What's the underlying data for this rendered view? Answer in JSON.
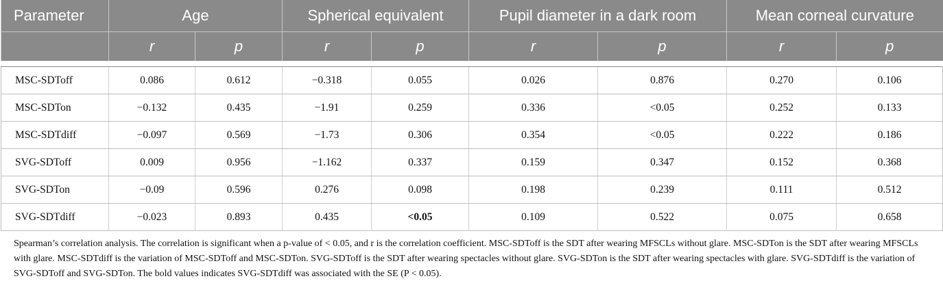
{
  "table": {
    "header": {
      "first": "Parameter",
      "groups": [
        "Age",
        "Spherical equivalent",
        "Pupil diameter in a dark room",
        "Mean corneal curvature"
      ],
      "sub": [
        "r",
        "p"
      ]
    },
    "rows": [
      [
        "MSC-SDToff",
        "0.086",
        "0.612",
        "−0.318",
        "0.055",
        "0.026",
        "0.876",
        "0.270",
        "0.106"
      ],
      [
        "MSC-SDTon",
        "−0.132",
        "0.435",
        "−1.91",
        "0.259",
        "0.336",
        "<0.05",
        "0.252",
        "0.133"
      ],
      [
        "MSC-SDTdiff",
        "−0.097",
        "0.569",
        "−1.73",
        "0.306",
        "0.354",
        "<0.05",
        "0.222",
        "0.186"
      ],
      [
        "SVG-SDToff",
        "0.009",
        "0.956",
        "−1.162",
        "0.337",
        "0.159",
        "0.347",
        "0.152",
        "0.368"
      ],
      [
        "SVG-SDTon",
        "−0.09",
        "0.596",
        "0.276",
        "0.098",
        "0.198",
        "0.239",
        "0.111",
        "0.512"
      ],
      [
        "SVG-SDTdiff",
        "−0.023",
        "0.893",
        "0.435",
        {
          "text": "<0.05",
          "bold": true
        },
        "0.109",
        "0.522",
        "0.075",
        "0.658"
      ]
    ],
    "footnote": "Spearman’s correlation analysis. The correlation is significant when a p-value of < 0.05, and r is the correlation coefficient. MSC-SDToff is the SDT after wearing MFSCLs without glare. MSC-SDTon is the SDT after wearing MFSCLs with glare. MSC-SDTdiff is the variation of MSC-SDToff and MSC-SDTon. SVG-SDToff is the SDT after wearing spectacles without glare. SVG-SDTon is the SDT after wearing spectacles with glare. SVG-SDTdiff is the variation of SVG-SDToff and SVG-SDTon. The bold values indicates SVG-SDTdiff was associated with the SE (P < 0.05)."
  }
}
